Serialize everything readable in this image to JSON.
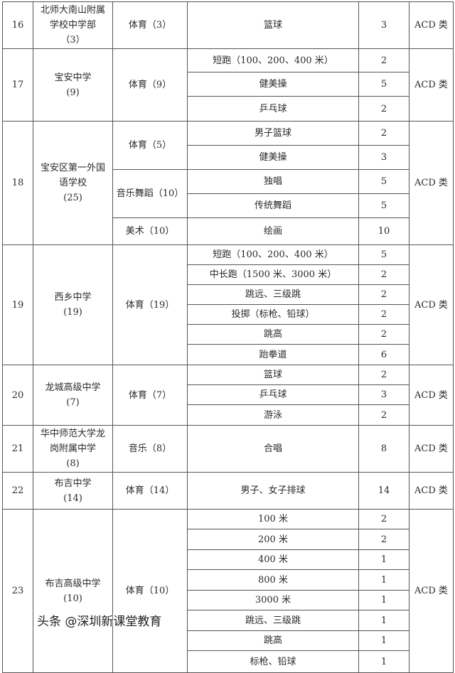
{
  "schools": [
    {
      "no": "16",
      "name": "北师大南山附属学校中学部",
      "quota": "（3）",
      "category": "ACD 类",
      "subjects": [
        {
          "name": "体育（3）",
          "items": [
            {
              "event": "篮球",
              "count": "3"
            }
          ]
        }
      ]
    },
    {
      "no": "17",
      "name": "宝安中学",
      "quota": "(9)",
      "category": "ACD 类",
      "subjects": [
        {
          "name": "体育（9）",
          "items": [
            {
              "event": "短跑（100、200、400 米）",
              "count": "2"
            },
            {
              "event": "健美操",
              "count": "5"
            },
            {
              "event": "乒乓球",
              "count": "2"
            }
          ]
        }
      ]
    },
    {
      "no": "18",
      "name": "宝安区第一外国语学校",
      "quota": "(25)",
      "category": "ACD 类",
      "subjects": [
        {
          "name": "体育（5）",
          "items": [
            {
              "event": "男子篮球",
              "count": "2"
            },
            {
              "event": "健美操",
              "count": "3"
            }
          ]
        },
        {
          "name": "音乐舞蹈（10）",
          "items": [
            {
              "event": "独唱",
              "count": "5"
            },
            {
              "event": "传统舞蹈",
              "count": "5"
            }
          ]
        },
        {
          "name": "美术（10）",
          "items": [
            {
              "event": "绘画",
              "count": "10"
            }
          ]
        }
      ]
    },
    {
      "no": "19",
      "name": "西乡中学",
      "quota": "(19)",
      "category": "ACD 类",
      "subjects": [
        {
          "name": "体育（19）",
          "items": [
            {
              "event": "短跑（100、200、400 米）",
              "count": "5"
            },
            {
              "event": "中长跑（1500 米、3000 米）",
              "count": "2"
            },
            {
              "event": "跳远、三级跳",
              "count": "2"
            },
            {
              "event": "投掷（标枪、铅球）",
              "count": "2"
            },
            {
              "event": "跳高",
              "count": "2"
            },
            {
              "event": "跆拳道",
              "count": "6"
            }
          ]
        }
      ]
    },
    {
      "no": "20",
      "name": "龙城高级中学",
      "quota": "(7)",
      "category": "ACD 类",
      "subjects": [
        {
          "name": "体育（7）",
          "items": [
            {
              "event": "篮球",
              "count": "2"
            },
            {
              "event": "乒乓球",
              "count": "3"
            },
            {
              "event": "游泳",
              "count": "2"
            }
          ]
        }
      ]
    },
    {
      "no": "21",
      "name": "华中师范大学龙岗附属中学",
      "quota": "(8)",
      "category": "ACD 类",
      "subjects": [
        {
          "name": "音乐（8）",
          "items": [
            {
              "event": "合唱",
              "count": "8"
            }
          ]
        }
      ]
    },
    {
      "no": "22",
      "name": "布吉中学",
      "quota": "(14)",
      "category": "ACD 类",
      "subjects": [
        {
          "name": "体育（14）",
          "items": [
            {
              "event": "男子、女子排球",
              "count": "14"
            }
          ]
        }
      ]
    },
    {
      "no": "23",
      "name": "布吉高级中学",
      "quota": "(10)",
      "category": "ACD 类",
      "subjects": [
        {
          "name": "体育（10）",
          "items": [
            {
              "event": "100 米",
              "count": "2"
            },
            {
              "event": "200 米",
              "count": "2"
            },
            {
              "event": "400 米",
              "count": "1"
            },
            {
              "event": "800 米",
              "count": "1"
            },
            {
              "event": "3000 米",
              "count": "1"
            },
            {
              "event": "跳远、三级跳",
              "count": "1"
            },
            {
              "event": "跳高",
              "count": "1"
            },
            {
              "event": "标枪、铅球",
              "count": "1"
            }
          ]
        }
      ]
    }
  ],
  "watermark": "头条 @深圳新课堂教育"
}
